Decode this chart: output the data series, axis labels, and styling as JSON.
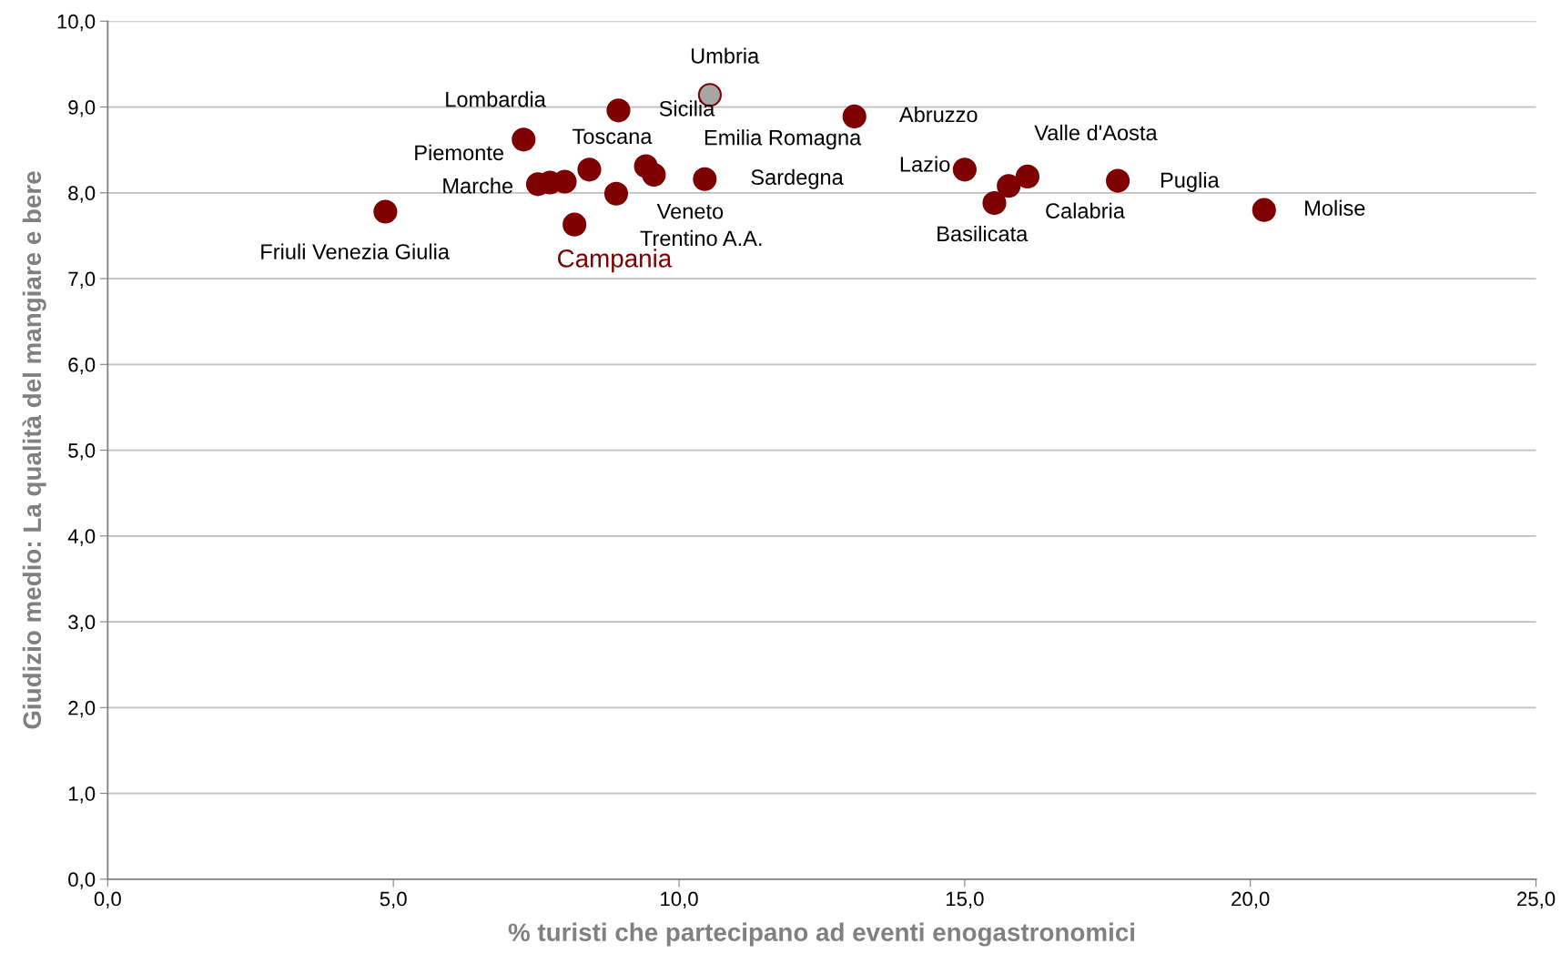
{
  "chart_data": {
    "type": "scatter",
    "xlabel": "% turisti che partecipano ad eventi enogastronomici",
    "ylabel": "Giudizio medio: La qualità del mangiare e bere",
    "xlim": [
      0,
      25
    ],
    "ylim": [
      0,
      10
    ],
    "xticks": [
      {
        "value": 0,
        "label": "0,0"
      },
      {
        "value": 5,
        "label": "5,0"
      },
      {
        "value": 10,
        "label": "10,0"
      },
      {
        "value": 15,
        "label": "15,0"
      },
      {
        "value": 20,
        "label": "20,0"
      },
      {
        "value": 25,
        "label": "25,0"
      }
    ],
    "yticks": [
      {
        "value": 0,
        "label": "0,0"
      },
      {
        "value": 1,
        "label": "1,0"
      },
      {
        "value": 2,
        "label": "2,0"
      },
      {
        "value": 3,
        "label": "3,0"
      },
      {
        "value": 4,
        "label": "4,0"
      },
      {
        "value": 5,
        "label": "5,0"
      },
      {
        "value": 6,
        "label": "6,0"
      },
      {
        "value": 7,
        "label": "7,0"
      },
      {
        "value": 8,
        "label": "8,0"
      },
      {
        "value": 9,
        "label": "9,0"
      },
      {
        "value": 10,
        "label": "10,0"
      }
    ],
    "grid": "y",
    "marker": "circle",
    "legend": false,
    "series": [
      {
        "color": "#7f0000",
        "x": [
          4.86,
          7.28,
          8.94,
          10.54,
          13.07,
          8.43,
          9.42,
          9.56,
          10.45,
          7.53,
          7.74,
          8.0,
          8.9,
          8.17,
          15.0,
          15.52,
          15.77,
          16.1,
          17.68,
          20.24
        ],
        "values": [
          7.78,
          8.62,
          8.96,
          9.14,
          8.89,
          8.27,
          8.31,
          8.21,
          8.16,
          8.1,
          8.12,
          8.13,
          7.99,
          7.63,
          8.27,
          7.88,
          8.08,
          8.19,
          8.14,
          7.8
        ],
        "colors": [
          "#7f0000",
          "#7f0000",
          "#7f0000",
          "#a6a6a6",
          "#7f0000",
          "#7f0000",
          "#7f0000",
          "#7f0000",
          "#7f0000",
          "#7f0000",
          "#7f0000",
          "#7f0000",
          "#7f0000",
          "#7f0000",
          "#7f0000",
          "#7f0000",
          "#7f0000",
          "#7f0000",
          "#7f0000",
          "#7f0000"
        ]
      }
    ],
    "annotations": [
      {
        "text": "Friuli Venezia Giulia",
        "x": 4.86,
        "y": 7.78
      },
      {
        "text": "Lombardia",
        "x": 7.28,
        "y": 8.62
      },
      {
        "text": "Sicilia",
        "x": 8.94,
        "y": 8.96
      },
      {
        "text": "Umbria",
        "x": 10.54,
        "y": 9.14
      },
      {
        "text": "Abruzzo",
        "x": 13.07,
        "y": 8.89
      },
      {
        "text": "Toscana",
        "x": 8.43,
        "y": 8.27
      },
      {
        "text": "Emilia Romagna",
        "x": 9.42,
        "y": 8.31
      },
      {
        "text": "Veneto",
        "x": 9.56,
        "y": 8.21
      },
      {
        "text": "Sardegna",
        "x": 10.45,
        "y": 8.16
      },
      {
        "text": "Marche",
        "x": 7.53,
        "y": 8.1
      },
      {
        "text": "Piemonte",
        "x": 7.74,
        "y": 8.12
      },
      {
        "text": "Trentino A.A.",
        "x": 8.9,
        "y": 7.99
      },
      {
        "text": "Campania",
        "x": 8.17,
        "y": 7.63
      },
      {
        "text": "Lazio",
        "x": 15.0,
        "y": 8.27
      },
      {
        "text": "Basilicata",
        "x": 15.52,
        "y": 7.88
      },
      {
        "text": "Calabria",
        "x": 15.77,
        "y": 8.08
      },
      {
        "text": "Valle d'Aosta",
        "x": 16.1,
        "y": 8.19
      },
      {
        "text": "Puglia",
        "x": 17.68,
        "y": 8.14
      },
      {
        "text": "Molise",
        "x": 20.24,
        "y": 7.8
      }
    ]
  }
}
